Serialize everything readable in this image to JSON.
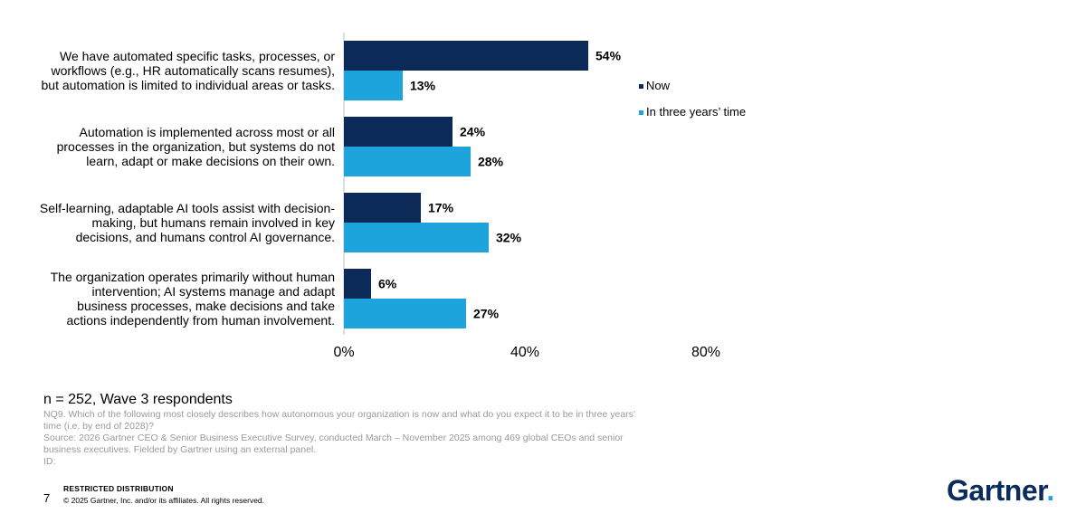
{
  "chart_data": {
    "type": "bar",
    "orientation": "horizontal",
    "categories": [
      "We have automated specific tasks, processes, or workflows (e.g., HR automatically scans resumes), but automation is limited to individual areas or tasks.",
      "Automation is implemented across most or all processes in the organization, but systems do not learn, adapt or make decisions on their own.",
      "Self-learning, adaptable AI tools assist with decision-making, but humans remain involved in key decisions, and humans control AI governance.",
      "The organization operates primarily without human intervention; AI systems manage and adapt business processes, make decisions and take actions independently from human involvement."
    ],
    "category_lines": [
      [
        "We have automated specific tasks, processes, or",
        "workflows (e.g., HR automatically scans resumes),",
        "but automation is limited to individual areas or tasks."
      ],
      [
        "Automation is implemented across most or all",
        "processes in the organization, but systems do not",
        "learn, adapt or make decisions on their own."
      ],
      [
        "Self-learning, adaptable AI tools assist with decision-",
        "making, but humans remain involved in key",
        "decisions, and humans control AI governance."
      ],
      [
        "The organization operates primarily without human",
        "intervention; AI systems manage and adapt",
        "business processes, make decisions and take",
        "actions independently from human involvement."
      ]
    ],
    "series": [
      {
        "name": "Now",
        "values": [
          54,
          24,
          17,
          6
        ],
        "labels": [
          "54%",
          "24%",
          "17%",
          "6%"
        ],
        "color": "#0b2a58"
      },
      {
        "name": "In three years’ time",
        "values": [
          13,
          28,
          32,
          27
        ],
        "labels": [
          "13%",
          "28%",
          "32%",
          "27%"
        ],
        "color": "#1ea4dc"
      }
    ],
    "xlim": [
      0,
      80
    ],
    "x_ticks": [
      0,
      40,
      80
    ],
    "x_tick_labels": [
      "0%",
      "40%",
      "80%"
    ],
    "legend_position": "right",
    "grid": false
  },
  "footnotes": {
    "sample": "n = 252, Wave 3 respondents",
    "lines": [
      "NQ9. Which of the following most closely describes how autonomous your organization is now and what do you expect it to be in three years’",
      "time (i.e. by end of 2028)?",
      "Source: 2026 Gartner CEO & Senior Business Executive Survey, conducted March – November 2025 among 469 global CEOs and senior",
      "business executives. Fielded by Gartner using an external panel.",
      "ID:"
    ]
  },
  "footer": {
    "page_number": "7",
    "restricted": "RESTRICTED DISTRIBUTION",
    "copyright": "© 2025 Gartner, Inc. and/or its affiliates. All rights reserved.",
    "logo": "Gartner",
    "logo_mark": "."
  }
}
